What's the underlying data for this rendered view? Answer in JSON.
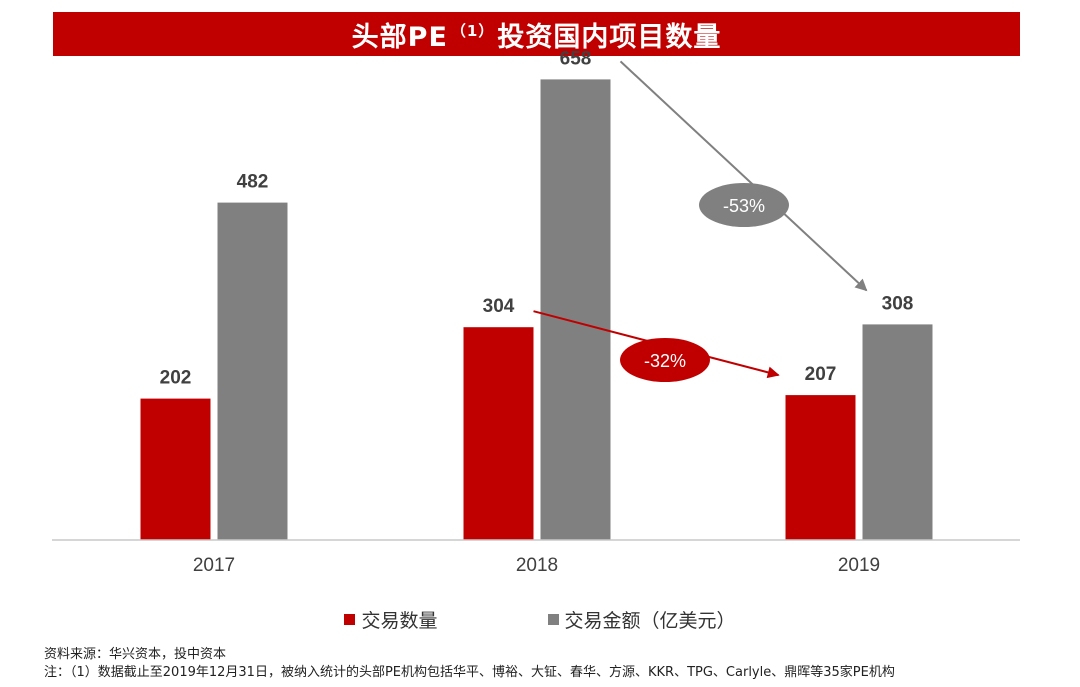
{
  "title": {
    "main": "头部PE",
    "note_mark": "（1）",
    "suffix": "投资国内项目数量"
  },
  "chart_data": {
    "type": "bar",
    "categories": [
      "2017",
      "2018",
      "2019"
    ],
    "series": [
      {
        "name": "交易数量",
        "values": [
          202,
          304,
          207
        ],
        "color": "#c00000"
      },
      {
        "name": "交易金额（亿美元）",
        "values": [
          482,
          658,
          308
        ],
        "color": "#808080"
      }
    ],
    "ylim": [
      0,
      700
    ],
    "annotations": [
      {
        "label": "-53%",
        "series": "交易金额（亿美元）",
        "from": "2018",
        "to": "2019",
        "color": "#808080"
      },
      {
        "label": "-32%",
        "series": "交易数量",
        "from": "2018",
        "to": "2019",
        "color": "#c00000"
      }
    ]
  },
  "notes": {
    "source": "资料来源：华兴资本，投中资本",
    "note": "注：（1）数据截止至2019年12月31日，被纳入统计的头部PE机构包括华平、博裕、大钲、春华、方源、KKR、TPG、Carlyle、鼎晖等35家PE机构"
  }
}
